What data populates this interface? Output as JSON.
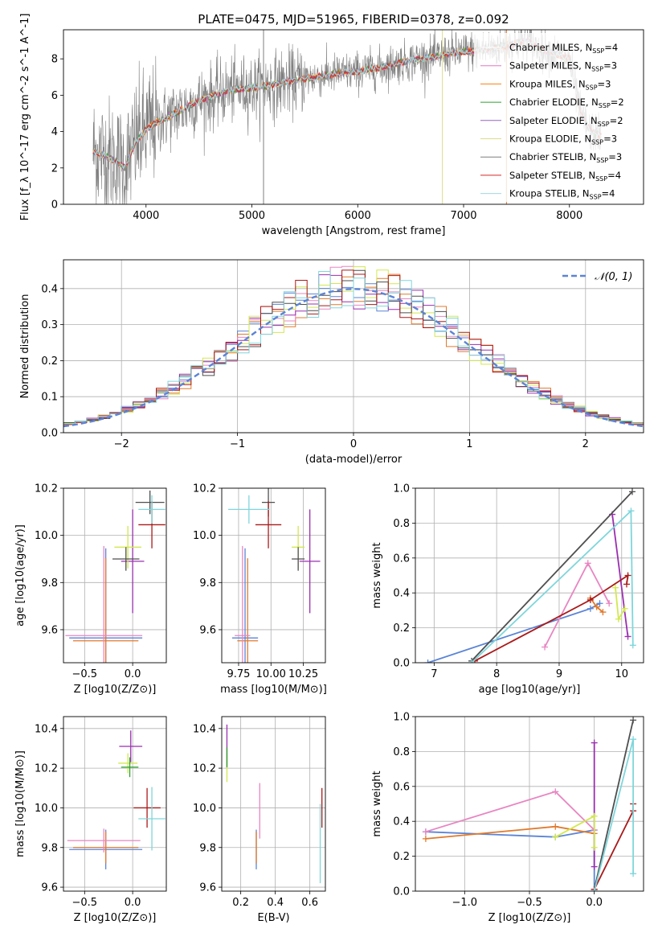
{
  "figure": {
    "title": "PLATE=0475, MJD=51965, FIBERID=0378, z=0.092"
  },
  "colors": {
    "data": "#7f7f7f",
    "series": [
      "#ffffff",
      "#e377c2",
      "#ff7f0e",
      "#2ca02c",
      "#9467bd",
      "#dbdb8d",
      "#7f7f7f",
      "#d62728",
      "#9edae5"
    ],
    "model": [
      "#5b84d6",
      "#e07a2c",
      "#e886c2",
      "#9a2fb0",
      "#d3e84f",
      "#4f4f4f",
      "#aa1a1a",
      "#7fd6db"
    ]
  },
  "chart_data": [
    {
      "id": "spectrum",
      "type": "line",
      "title": "PLATE=0475, MJD=51965, FIBERID=0378, z=0.092",
      "xlabel": "wavelength [Angstrom, rest frame]",
      "ylabel": "Flux [f_λ 10^-17 erg cm^-2 s^-1 A^-1]",
      "xlim": [
        3220,
        8700
      ],
      "ylim": [
        0,
        9.6
      ],
      "xticks": [
        "4000",
        "5000",
        "6000",
        "7000",
        "8000"
      ],
      "yticks": [
        "0",
        "2",
        "4",
        "6",
        "8"
      ],
      "grid": false,
      "legend_placement": "right",
      "legend": [
        {
          "text": "Chabrier MILES, N_SSP=4",
          "color": "#ffffff"
        },
        {
          "text": "Salpeter MILES, N_SSP=3",
          "color": "#e377c2"
        },
        {
          "text": "Kroupa MILES, N_SSP=3",
          "color": "#ff7f0e"
        },
        {
          "text": "Chabrier ELODIE, N_SSP=2",
          "color": "#2ca02c"
        },
        {
          "text": "Salpeter ELODIE, N_SSP=2",
          "color": "#9467bd"
        },
        {
          "text": "Kroupa ELODIE, N_SSP=3",
          "color": "#dbdb8d"
        },
        {
          "text": "Chabrier STELIB, N_SSP=3",
          "color": "#7f7f7f"
        },
        {
          "text": "Salpeter STELIB, N_SSP=4",
          "color": "#d62728"
        },
        {
          "text": "Kroupa STELIB, N_SSP=4",
          "color": "#9edae5"
        }
      ],
      "continuum": {
        "x": [
          3500,
          3600,
          3700,
          3800,
          3900,
          4000,
          4100,
          4200,
          4300,
          4400,
          4500,
          4600,
          4800,
          5000,
          5200,
          5400,
          5600,
          5800,
          6000,
          6200,
          6400,
          6600,
          6800,
          7000,
          7200,
          7400,
          7600,
          7700,
          7800,
          7900,
          8000,
          8100,
          8200,
          8300
        ],
        "y": [
          2.9,
          2.7,
          2.4,
          2.0,
          3.4,
          4.1,
          4.5,
          4.8,
          5.1,
          5.4,
          5.7,
          5.9,
          6.3,
          6.4,
          6.6,
          6.8,
          7.0,
          7.2,
          7.3,
          7.5,
          7.8,
          8.0,
          8.2,
          8.4,
          8.5,
          8.7,
          9.0,
          8.6,
          8.4,
          8.2,
          8.0,
          5.0,
          4.0,
          3.8
        ]
      }
    },
    {
      "id": "residuals",
      "type": "line",
      "xlabel": "(data-model)/error",
      "ylabel": "Normed distribution",
      "xlim": [
        -2.5,
        2.5
      ],
      "ylim": [
        0,
        0.48
      ],
      "xticks": [
        "−2",
        "−1",
        "0",
        "1",
        "2"
      ],
      "yticks": [
        "0.0",
        "0.1",
        "0.2",
        "0.3",
        "0.4"
      ],
      "grid": true,
      "legend_placement": "top-right",
      "legend": [
        {
          "text": "𝒩(0, 1)",
          "color": "#5b84d6"
        }
      ],
      "bin_width": 0.1
    },
    {
      "id": "age-vs-Z",
      "type": "scatter",
      "xlabel": "Z [log10(Z/Z⊙)]",
      "ylabel": "age  [log10(age/yr)]",
      "xlim": [
        -0.72,
        0.35
      ],
      "ylim": [
        9.46,
        10.2
      ],
      "xticks": [
        "−0.5",
        "0.0"
      ],
      "yticks": [
        "9.6",
        "9.8",
        "10.0",
        "10.2"
      ],
      "grid": true,
      "points": [
        {
          "x": -0.28,
          "y": 9.565,
          "xerr": 0.38,
          "yerr": 0.38,
          "c": "#5b84d6"
        },
        {
          "x": -0.28,
          "y": 9.553,
          "xerr": 0.34,
          "yerr": 0.35,
          "c": "#e07a2c"
        },
        {
          "x": -0.3,
          "y": 9.575,
          "xerr": 0.4,
          "yerr": 0.38,
          "c": "#e886c2"
        },
        {
          "x": 0.0,
          "y": 9.89,
          "xerr": 0.12,
          "yerr": 0.22,
          "c": "#9a2fb0"
        },
        {
          "x": -0.05,
          "y": 9.95,
          "xerr": 0.14,
          "yerr": 0.09,
          "c": "#d3e84f"
        },
        {
          "x": -0.07,
          "y": 9.9,
          "xerr": 0.14,
          "yerr": 0.05,
          "c": "#4f4f4f"
        },
        {
          "x": 0.18,
          "y": 10.14,
          "xerr": 0.15,
          "yerr": 0.05,
          "c": "#4f4f4f"
        },
        {
          "x": 0.2,
          "y": 10.045,
          "xerr": 0.14,
          "yerr": 0.1,
          "c": "#aa1a1a"
        },
        {
          "x": 0.2,
          "y": 10.11,
          "xerr": 0.14,
          "yerr": 0.06,
          "c": "#7fd6db"
        }
      ]
    },
    {
      "id": "age-vs-mass",
      "type": "scatter",
      "xlabel": "mass [log10(M/M⊙)]",
      "ylabel": "",
      "xlim": [
        9.62,
        10.42
      ],
      "ylim": [
        9.46,
        10.2
      ],
      "xticks": [
        "9.75",
        "10.00",
        "10.25"
      ],
      "yticks": [
        "9.6",
        "9.8",
        "10.0",
        "10.2"
      ],
      "grid": true,
      "points": [
        {
          "x": 9.8,
          "y": 9.565,
          "xerr": 0.1,
          "yerr": 0.38,
          "c": "#5b84d6"
        },
        {
          "x": 9.82,
          "y": 9.553,
          "xerr": 0.08,
          "yerr": 0.35,
          "c": "#e07a2c"
        },
        {
          "x": 9.78,
          "y": 9.575,
          "xerr": 0.06,
          "yerr": 0.38,
          "c": "#e886c2"
        },
        {
          "x": 10.3,
          "y": 9.89,
          "xerr": 0.08,
          "yerr": 0.22,
          "c": "#9a2fb0"
        },
        {
          "x": 10.21,
          "y": 9.95,
          "xerr": 0.05,
          "yerr": 0.09,
          "c": "#d3e84f"
        },
        {
          "x": 10.21,
          "y": 9.9,
          "xerr": 0.05,
          "yerr": 0.05,
          "c": "#4f4f4f"
        },
        {
          "x": 9.98,
          "y": 10.14,
          "xerr": 0.05,
          "yerr": 0.06,
          "c": "#4f4f4f"
        },
        {
          "x": 9.98,
          "y": 10.045,
          "xerr": 0.1,
          "yerr": 0.1,
          "c": "#aa1a1a"
        },
        {
          "x": 9.83,
          "y": 10.11,
          "xerr": 0.16,
          "yerr": 0.06,
          "c": "#7fd6db"
        }
      ]
    },
    {
      "id": "weight-vs-age",
      "type": "line",
      "xlabel": "age  [log10(age/yr)]",
      "ylabel": "mass weight",
      "xlim": [
        6.7,
        10.35
      ],
      "ylim": [
        0,
        1
      ],
      "xticks": [
        "7",
        "8",
        "9",
        "10"
      ],
      "yticks": [
        "0.0",
        "0.2",
        "0.4",
        "0.6",
        "0.8",
        "1.0"
      ],
      "grid": true,
      "series": [
        {
          "c": "#5b84d6",
          "points": [
            [
              6.9,
              0.0
            ],
            [
              9.5,
              0.31
            ],
            [
              9.65,
              0.34
            ]
          ]
        },
        {
          "c": "#e07a2c",
          "points": [
            [
              9.5,
              0.37
            ],
            [
              9.6,
              0.32
            ],
            [
              9.7,
              0.29
            ]
          ]
        },
        {
          "c": "#e886c2",
          "points": [
            [
              8.77,
              0.09
            ],
            [
              9.46,
              0.57
            ],
            [
              9.8,
              0.34
            ]
          ]
        },
        {
          "c": "#9a2fb0",
          "points": [
            [
              9.85,
              0.85
            ],
            [
              10.1,
              0.15
            ]
          ]
        },
        {
          "c": "#d3e84f",
          "points": [
            [
              9.9,
              0.43
            ],
            [
              9.95,
              0.25
            ],
            [
              10.05,
              0.31
            ]
          ]
        },
        {
          "c": "#4f4f4f",
          "points": [
            [
              7.6,
              0.01
            ],
            [
              10.17,
              0.98
            ]
          ]
        },
        {
          "c": "#aa1a1a",
          "points": [
            [
              7.65,
              0.01
            ],
            [
              9.5,
              0.36
            ],
            [
              10.1,
              0.5
            ],
            [
              10.08,
              0.45
            ]
          ]
        },
        {
          "c": "#7fd6db",
          "points": [
            [
              7.6,
              0.0
            ],
            [
              10.15,
              0.87
            ],
            [
              10.18,
              0.1
            ]
          ]
        }
      ]
    },
    {
      "id": "mass-vs-Z",
      "type": "scatter",
      "xlabel": "Z [log10(Z/Z⊙)]",
      "ylabel": "mass [log10(M/M⊙)]",
      "xlim": [
        -0.72,
        0.35
      ],
      "ylim": [
        9.58,
        10.46
      ],
      "xticks": [
        "−0.5",
        "0.0"
      ],
      "yticks": [
        "9.6",
        "9.8",
        "10.0",
        "10.2",
        "10.4"
      ],
      "grid": true,
      "points": [
        {
          "x": -0.28,
          "y": 9.79,
          "xerr": 0.38,
          "yerr": 0.1,
          "c": "#5b84d6"
        },
        {
          "x": -0.28,
          "y": 9.8,
          "xerr": 0.34,
          "yerr": 0.08,
          "c": "#e07a2c"
        },
        {
          "x": -0.3,
          "y": 9.835,
          "xerr": 0.38,
          "yerr": 0.06,
          "c": "#e886c2"
        },
        {
          "x": -0.02,
          "y": 10.31,
          "xerr": 0.12,
          "yerr": 0.08,
          "c": "#9a2fb0"
        },
        {
          "x": -0.05,
          "y": 10.225,
          "xerr": 0.1,
          "yerr": 0.05,
          "c": "#d3e84f"
        },
        {
          "x": -0.03,
          "y": 10.205,
          "xerr": 0.09,
          "yerr": 0.05,
          "c": "#2ca02c"
        },
        {
          "x": 0.15,
          "y": 10.0,
          "xerr": 0.14,
          "yerr": 0.1,
          "c": "#aa1a1a"
        },
        {
          "x": 0.2,
          "y": 9.945,
          "xerr": 0.14,
          "yerr": 0.16,
          "c": "#7fd6db"
        }
      ]
    },
    {
      "id": "mass-vs-ebv",
      "type": "scatter",
      "xlabel": "E(B-V)",
      "ylabel": "",
      "xlim": [
        0.09,
        0.69
      ],
      "ylim": [
        9.58,
        10.46
      ],
      "xticks": [
        "0.2",
        "0.4",
        "0.6"
      ],
      "yticks": [
        "9.6",
        "9.8",
        "10.0",
        "10.2",
        "10.4"
      ],
      "grid": true,
      "points": [
        {
          "x": 0.29,
          "y": 9.79,
          "xerr": 0.0,
          "yerr": 0.1,
          "c": "#5b84d6"
        },
        {
          "x": 0.29,
          "y": 9.8,
          "xerr": 0.0,
          "yerr": 0.08,
          "c": "#e07a2c"
        },
        {
          "x": 0.31,
          "y": 9.985,
          "xerr": 0.0,
          "yerr": 0.14,
          "c": "#e886c2"
        },
        {
          "x": 0.12,
          "y": 10.31,
          "xerr": 0.0,
          "yerr": 0.11,
          "c": "#9a2fb0"
        },
        {
          "x": 0.12,
          "y": 10.2,
          "xerr": 0.0,
          "yerr": 0.07,
          "c": "#d3e84f"
        },
        {
          "x": 0.12,
          "y": 10.255,
          "xerr": 0.0,
          "yerr": 0.05,
          "c": "#2ca02c"
        },
        {
          "x": 0.67,
          "y": 10.0,
          "xerr": 0.0,
          "yerr": 0.1,
          "c": "#aa1a1a"
        },
        {
          "x": 0.66,
          "y": 9.82,
          "xerr": 0.0,
          "yerr": 0.2,
          "c": "#7fd6db"
        }
      ]
    },
    {
      "id": "weight-vs-Z",
      "type": "line",
      "xlabel": "Z [log10(Z/Z⊙)]",
      "ylabel": "mass weight",
      "xlim": [
        -1.38,
        0.38
      ],
      "ylim": [
        0,
        1
      ],
      "xticks": [
        "−1.0",
        "−0.5",
        "0.0"
      ],
      "yticks": [
        "0.0",
        "0.2",
        "0.4",
        "0.6",
        "0.8",
        "1.0"
      ],
      "grid": true,
      "series": [
        {
          "c": "#5b84d6",
          "points": [
            [
              -1.3,
              0.34
            ],
            [
              -0.3,
              0.31
            ],
            [
              0.0,
              0.35
            ],
            [
              0.0,
              0.0
            ]
          ]
        },
        {
          "c": "#e07a2c",
          "points": [
            [
              -1.3,
              0.3
            ],
            [
              -0.3,
              0.37
            ],
            [
              0.0,
              0.33
            ]
          ]
        },
        {
          "c": "#e886c2",
          "points": [
            [
              -1.3,
              0.34
            ],
            [
              -0.3,
              0.57
            ],
            [
              0.0,
              0.35
            ]
          ]
        },
        {
          "c": "#9a2fb0",
          "points": [
            [
              0.0,
              0.85
            ],
            [
              0.0,
              0.14
            ]
          ]
        },
        {
          "c": "#d3e84f",
          "points": [
            [
              -0.3,
              0.31
            ],
            [
              0.0,
              0.43
            ],
            [
              0.0,
              0.25
            ]
          ]
        },
        {
          "c": "#4f4f4f",
          "points": [
            [
              0.0,
              0.01
            ],
            [
              0.3,
              0.98
            ]
          ]
        },
        {
          "c": "#aa1a1a",
          "points": [
            [
              0.0,
              0.01
            ],
            [
              0.3,
              0.46
            ],
            [
              0.3,
              0.5
            ]
          ]
        },
        {
          "c": "#7fd6db",
          "points": [
            [
              0.0,
              0.0
            ],
            [
              0.3,
              0.87
            ],
            [
              0.3,
              0.1
            ]
          ]
        }
      ]
    }
  ]
}
